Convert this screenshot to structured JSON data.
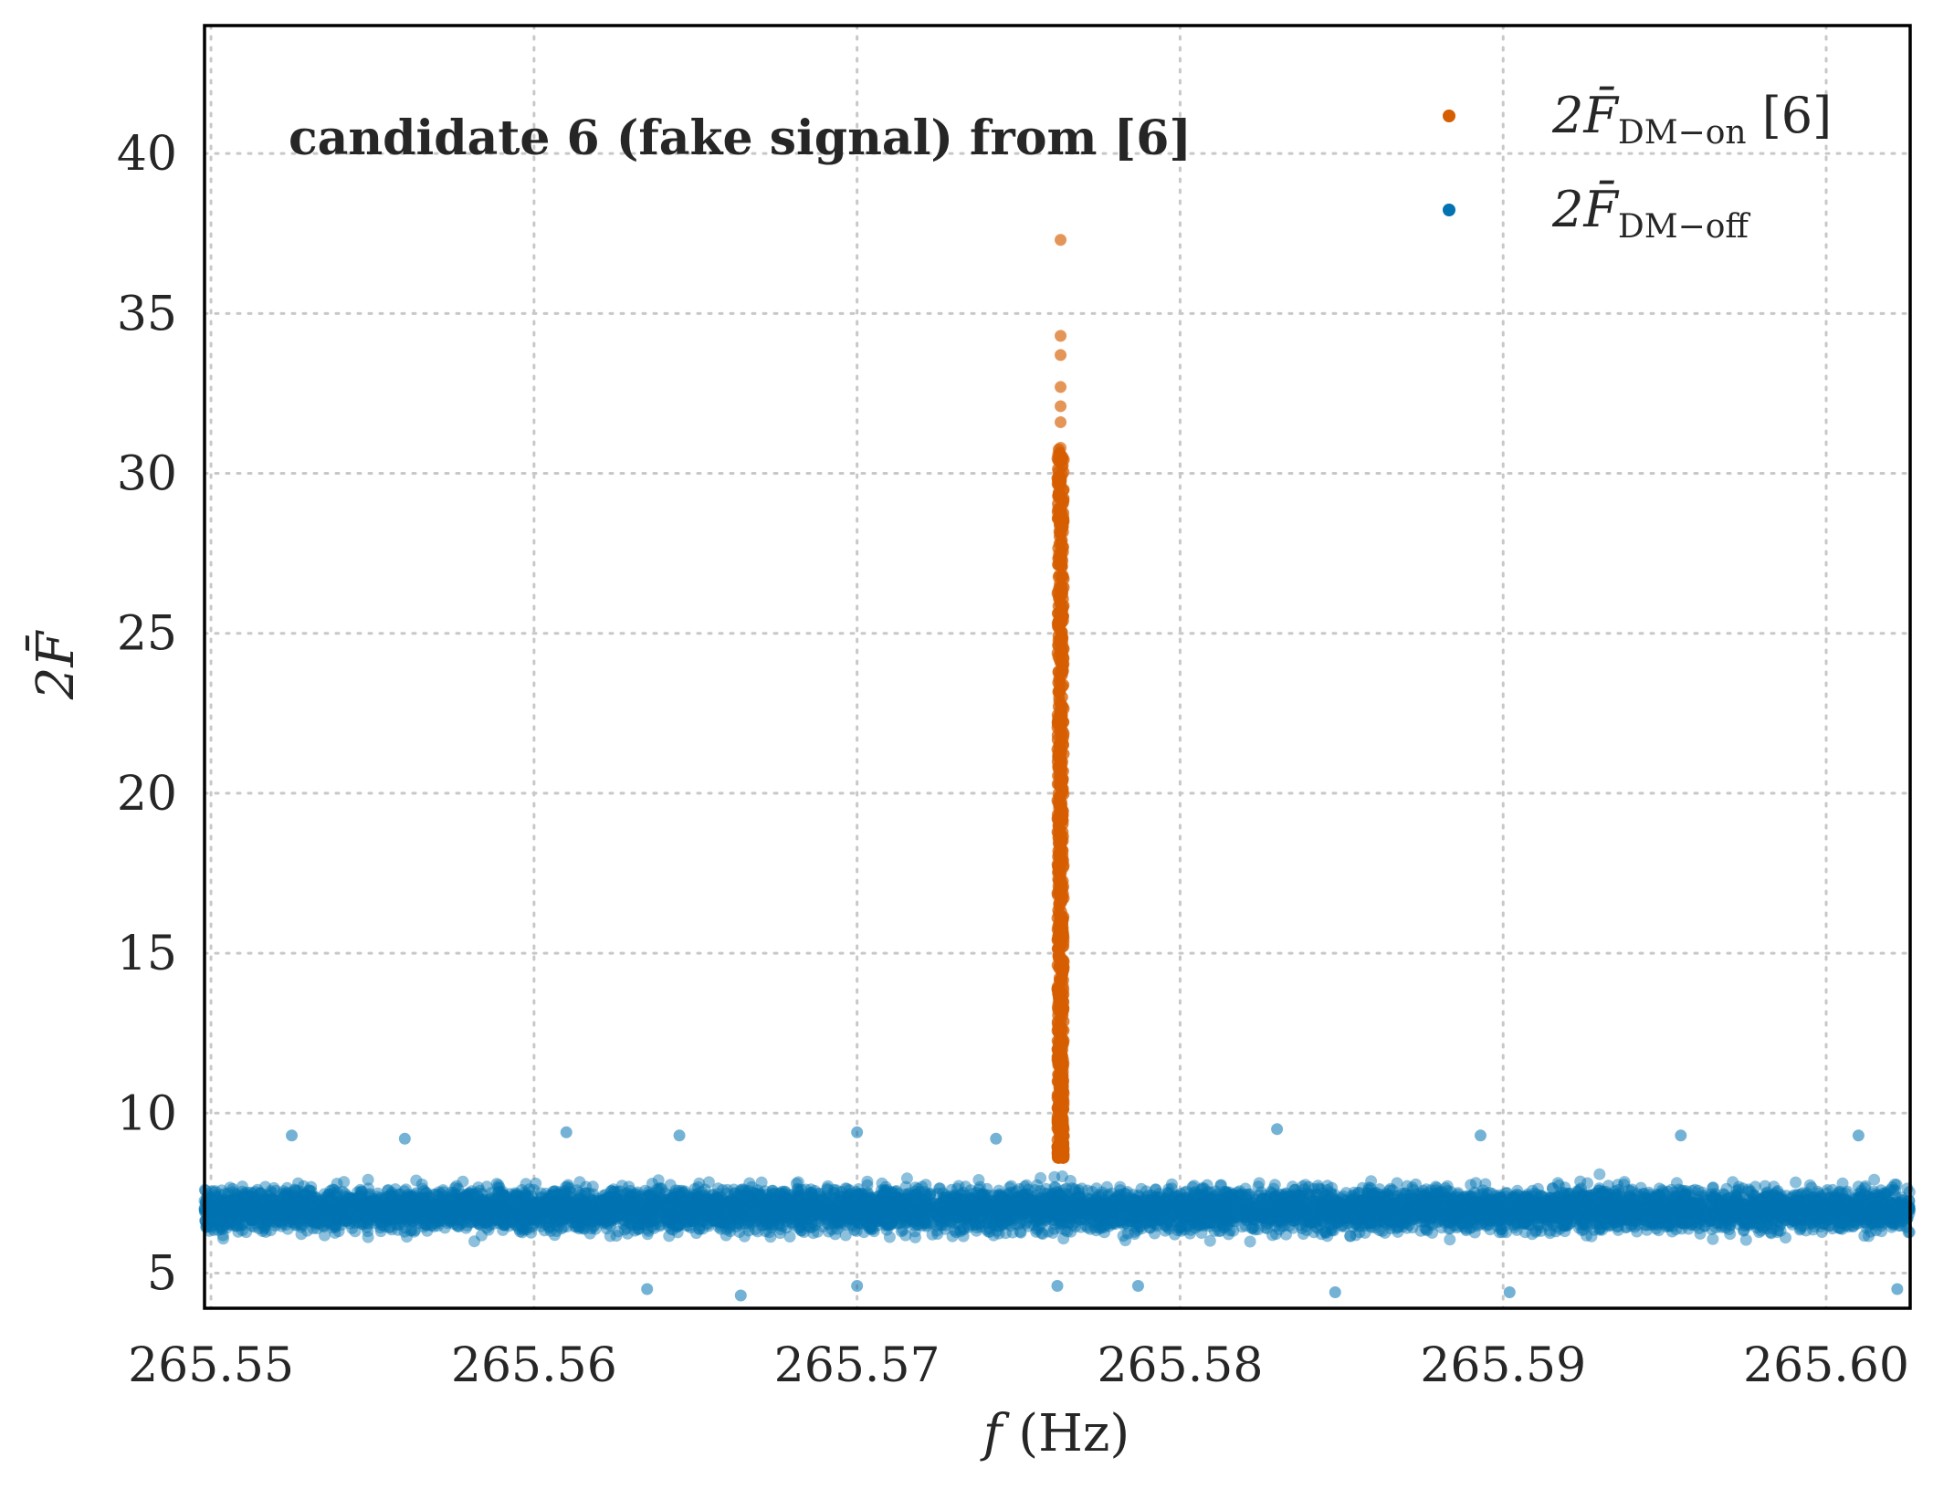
{
  "chart_data": {
    "type": "scatter",
    "title": "",
    "annotation": "candidate 6 (fake signal) from [6]",
    "xlabel": {
      "italic": "f",
      "rest": " (Hz)"
    },
    "ylabel": "2F̄",
    "xlim": [
      265.5498,
      265.6026
    ],
    "ylim": [
      3.9,
      44.0
    ],
    "xticks": [
      "265.55",
      "265.56",
      "265.57",
      "265.58",
      "265.59",
      "265.60"
    ],
    "xtick_values": [
      265.55,
      265.56,
      265.57,
      265.58,
      265.59,
      265.6
    ],
    "yticks": [
      "5",
      "10",
      "15",
      "20",
      "25",
      "30",
      "35",
      "40"
    ],
    "ytick_values": [
      5,
      10,
      15,
      20,
      25,
      30,
      35,
      40
    ],
    "grid": true,
    "grid_style": "dotted",
    "legend_position": "top-right",
    "series": [
      {
        "key": "dm_on",
        "name": {
          "main": "2F̄",
          "sub": "DM−on",
          "suffix": " [6]"
        },
        "color": "#d55e00",
        "x_center": 265.5763,
        "x_halfwidth": 0.0001,
        "y_range": [
          8.6,
          30.8
        ],
        "outliers": [
          {
            "x": 265.5763,
            "y": 37.3
          },
          {
            "x": 265.5763,
            "y": 34.3
          },
          {
            "x": 265.5763,
            "y": 33.7
          },
          {
            "x": 265.5763,
            "y": 32.7
          },
          {
            "x": 265.5763,
            "y": 32.1
          },
          {
            "x": 265.5763,
            "y": 31.6
          },
          {
            "x": 265.5763,
            "y": 30.8
          },
          {
            "x": 265.5763,
            "y": 29.6
          },
          {
            "x": 265.5763,
            "y": 28.9
          },
          {
            "x": 265.5763,
            "y": 28.2
          }
        ]
      },
      {
        "key": "dm_off",
        "name": {
          "main": "2F̄",
          "sub": "DM−off",
          "suffix": ""
        },
        "color": "#0173b2",
        "x_range": [
          265.5498,
          265.6026
        ],
        "y_band": [
          5.2,
          8.6
        ],
        "y_core": 7.0,
        "outliers": [
          {
            "x": 265.5525,
            "y": 9.3
          },
          {
            "x": 265.556,
            "y": 9.2
          },
          {
            "x": 265.561,
            "y": 9.4
          },
          {
            "x": 265.5645,
            "y": 9.3
          },
          {
            "x": 265.57,
            "y": 9.4
          },
          {
            "x": 265.5743,
            "y": 9.2
          },
          {
            "x": 265.583,
            "y": 9.5
          },
          {
            "x": 265.5893,
            "y": 9.3
          },
          {
            "x": 265.5955,
            "y": 9.3
          },
          {
            "x": 265.601,
            "y": 9.3
          },
          {
            "x": 265.5635,
            "y": 4.5
          },
          {
            "x": 265.5664,
            "y": 4.3
          },
          {
            "x": 265.57,
            "y": 4.6
          },
          {
            "x": 265.5762,
            "y": 4.6
          },
          {
            "x": 265.5787,
            "y": 4.6
          },
          {
            "x": 265.5848,
            "y": 4.4
          },
          {
            "x": 265.5902,
            "y": 4.4
          },
          {
            "x": 265.6022,
            "y": 4.5
          }
        ]
      }
    ]
  }
}
